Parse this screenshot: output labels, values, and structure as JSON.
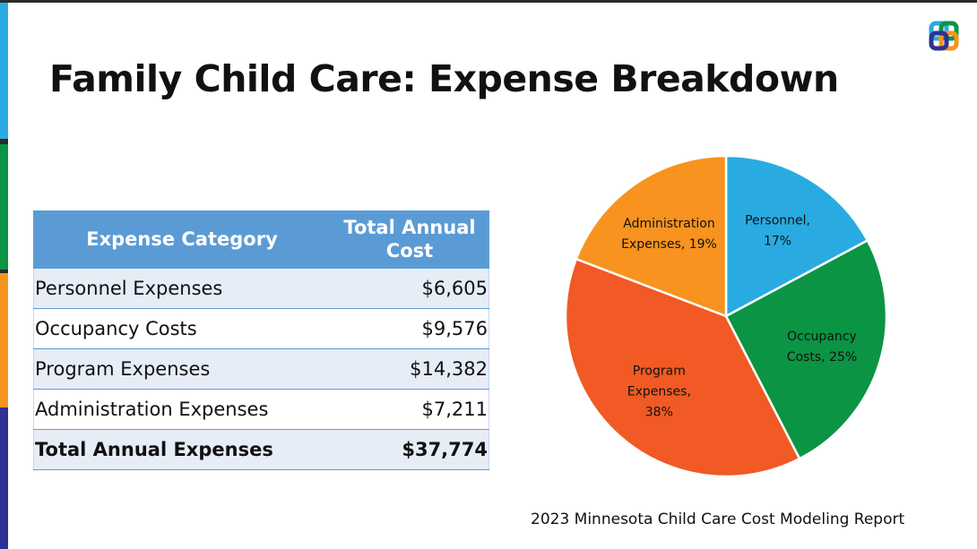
{
  "title": "Family Child Care: Expense Breakdown",
  "source": "2023 Minnesota Child Care Cost Modeling Report",
  "colors": {
    "header": "#5b9bd5",
    "personnel": "#29abe2",
    "occupancy": "#0b9444",
    "program": "#f15a24",
    "administration": "#f7931e",
    "side_strip": [
      "#29abe2",
      "#0b9444",
      "#f7931e",
      "#2e3192"
    ]
  },
  "logo": {
    "icon": "interlocking-squares-logo"
  },
  "table": {
    "headers": {
      "category": "Expense Category",
      "cost_line1": "Total Annual",
      "cost_line2": "Cost"
    },
    "rows": [
      {
        "category": "Personnel Expenses",
        "cost": "$6,605"
      },
      {
        "category": "Occupancy Costs",
        "cost": "$9,576"
      },
      {
        "category": "Program Expenses",
        "cost": "$14,382"
      },
      {
        "category": "Administration Expenses",
        "cost": "$7,211"
      }
    ],
    "total": {
      "category": "Total Annual Expenses",
      "cost": "$37,774"
    }
  },
  "chart_data": {
    "type": "pie",
    "slices": [
      {
        "key": "personnel",
        "label_lines": [
          "Personnel,",
          "17%"
        ],
        "value": 17,
        "color": "#29abe2"
      },
      {
        "key": "occupancy",
        "label_lines": [
          "Occupancy",
          "Costs, 25%"
        ],
        "value": 25,
        "color": "#0b9444"
      },
      {
        "key": "program",
        "label_lines": [
          "Program",
          "Expenses,",
          "38%"
        ],
        "value": 38,
        "color": "#f15a24"
      },
      {
        "key": "administration",
        "label_lines": [
          "Administration",
          "Expenses, 19%"
        ],
        "value": 19,
        "color": "#f7931e"
      }
    ],
    "start_angle_deg": 0,
    "direction": "clockwise",
    "legend": "none"
  }
}
